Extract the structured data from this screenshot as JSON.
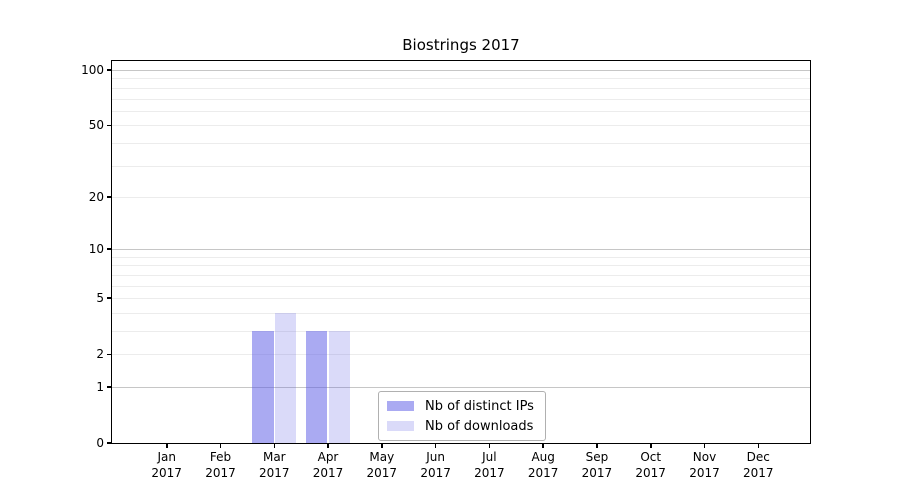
{
  "chart_data": {
    "type": "bar",
    "title": "Biostrings 2017",
    "categories": [
      {
        "month": "Jan",
        "year": "2017"
      },
      {
        "month": "Feb",
        "year": "2017"
      },
      {
        "month": "Mar",
        "year": "2017"
      },
      {
        "month": "Apr",
        "year": "2017"
      },
      {
        "month": "May",
        "year": "2017"
      },
      {
        "month": "Jun",
        "year": "2017"
      },
      {
        "month": "Jul",
        "year": "2017"
      },
      {
        "month": "Aug",
        "year": "2017"
      },
      {
        "month": "Sep",
        "year": "2017"
      },
      {
        "month": "Oct",
        "year": "2017"
      },
      {
        "month": "Nov",
        "year": "2017"
      },
      {
        "month": "Dec",
        "year": "2017"
      }
    ],
    "series": [
      {
        "name": "Nb of distinct IPs",
        "color": "rgba(85,85,229,0.5)",
        "color_hex_over_white": "#aaaaf2",
        "values": [
          0,
          0,
          3,
          3,
          0,
          0,
          0,
          0,
          0,
          0,
          0,
          0
        ]
      },
      {
        "name": "Nb of downloads",
        "color": "rgba(85,85,229,0.22)",
        "color_hex_over_white": "#dadaf8",
        "values": [
          0,
          0,
          4,
          3,
          0,
          0,
          0,
          0,
          0,
          0,
          0,
          0
        ]
      }
    ],
    "y_axis": {
      "scale": "log1p",
      "tick_values": [
        0,
        1,
        2,
        5,
        10,
        20,
        50,
        100
      ],
      "major_gridlines": [
        1,
        10,
        100
      ],
      "minor_gridlines": [
        2,
        3,
        4,
        5,
        6,
        7,
        8,
        9,
        20,
        30,
        40,
        50,
        60,
        70,
        80,
        90
      ],
      "ylim": [
        0,
        112
      ],
      "grid": true
    },
    "legend": {
      "position": "lower center"
    }
  },
  "colors": {
    "grid_major": "#c6c6c6",
    "grid_minor": "#ececec",
    "axis": "#000000",
    "legend_border": "#b0b0b0",
    "background": "#ffffff"
  }
}
